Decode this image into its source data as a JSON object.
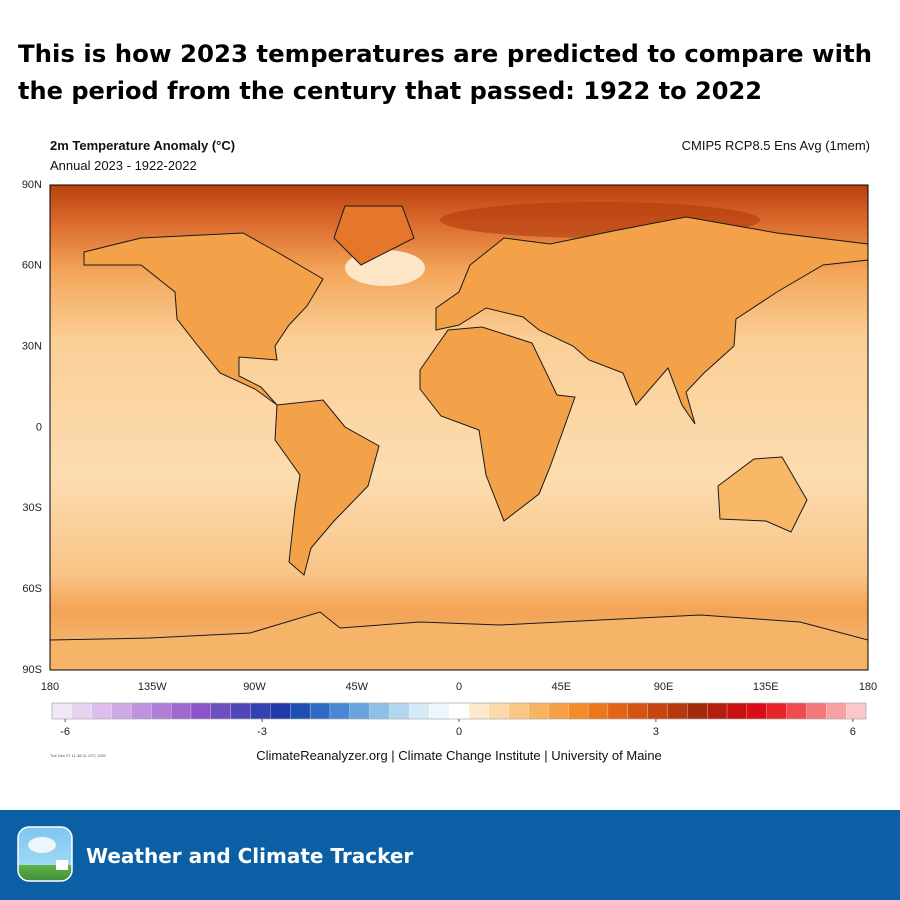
{
  "header": {
    "title_lines": [
      "This is how 2023 temperatures are predicted to compare with",
      "the period from the century that passed: 1922 to 2022"
    ]
  },
  "map": {
    "title": "2m Temperature Anomaly (°C)",
    "subtitle": "Annual 2023 - 1922-2022",
    "model": "CMIP5 RCP8.5 Ens Avg (1mem)",
    "lat_labels": [
      "90N",
      "60N",
      "30N",
      "0",
      "30S",
      "60S",
      "90S"
    ],
    "lon_labels": [
      "180",
      "135W",
      "90W",
      "45W",
      "0",
      "45E",
      "90E",
      "135E",
      "180"
    ],
    "colorbar": {
      "lim": [
        -6.2,
        6.2
      ],
      "ticks": [
        -6,
        -3,
        0,
        3,
        6
      ],
      "colors": [
        "#f3e6f7",
        "#e8d2f2",
        "#dcbdec",
        "#cfa8e6",
        "#c093df",
        "#b07ed7",
        "#9d69cf",
        "#8a55c6",
        "#6e4fc0",
        "#4f47b8",
        "#3341b0",
        "#2238a6",
        "#1f4fb5",
        "#2f6ac4",
        "#4a86d2",
        "#6aa3dd",
        "#8dbfe8",
        "#b3d7f0",
        "#d6eaf7",
        "#eef6fb",
        "#ffffff",
        "#fdeacc",
        "#fcd9a8",
        "#fbc784",
        "#f9b463",
        "#f6a043",
        "#f28c2b",
        "#ec771d",
        "#e26417",
        "#d65413",
        "#c7450f",
        "#b6380c",
        "#a22b09",
        "#b51d0c",
        "#c8110f",
        "#da0d16",
        "#e8242b",
        "#ef4c50",
        "#f4777a",
        "#f8a0a3",
        "#fbc7c9"
      ]
    },
    "timestamp": "Tue Dec 27 11:38:31 UTC 2022",
    "credit": "ClimateReanalyzer.org | Climate Change Institute | University of Maine"
  },
  "footer": {
    "brand": "Weather and Climate Tracker"
  }
}
